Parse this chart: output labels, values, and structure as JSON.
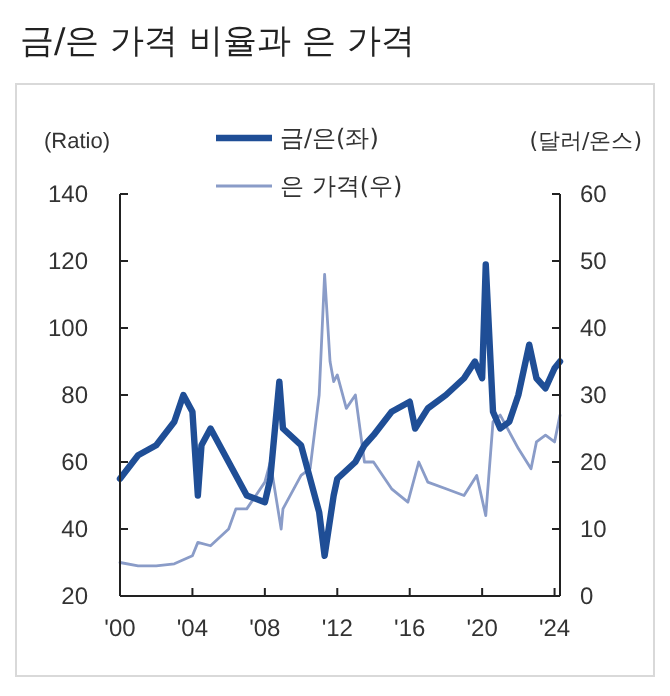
{
  "chart_data": {
    "type": "line",
    "title": "금/은 가격 비율과 은 가격",
    "ylabel": "(Ratio)",
    "y2label": "(달러/온스)",
    "xlim": [
      2000,
      2024.3
    ],
    "xticks": [
      {
        "value": 2000,
        "label": "'00"
      },
      {
        "value": 2004,
        "label": "'04"
      },
      {
        "value": 2008,
        "label": "'08"
      },
      {
        "value": 2012,
        "label": "'12"
      },
      {
        "value": 2016,
        "label": "'16"
      },
      {
        "value": 2020,
        "label": "'20"
      },
      {
        "value": 2024,
        "label": "'24"
      }
    ],
    "ylim": [
      20,
      140
    ],
    "yticks": [
      20,
      40,
      60,
      80,
      100,
      120,
      140
    ],
    "y2lim": [
      0,
      60
    ],
    "y2ticks": [
      0,
      10,
      20,
      30,
      40,
      50,
      60
    ],
    "legend": "top",
    "grid": false,
    "series": [
      {
        "name": "금/은(좌)",
        "color": "#1f4e96",
        "x": [
          2000,
          2001,
          2002,
          2003,
          2003.5,
          2004,
          2004.3,
          2004.5,
          2005,
          2006,
          2006.5,
          2007,
          2008,
          2008.3,
          2008.8,
          2009,
          2010,
          2011,
          2011.3,
          2011.8,
          2012,
          2013,
          2013.5,
          2014,
          2015,
          2016,
          2016.3,
          2017,
          2018,
          2019,
          2019.6,
          2020,
          2020.2,
          2020.6,
          2021,
          2021.5,
          2022,
          2022.6,
          2023,
          2023.5,
          2024,
          2024.3
        ],
        "values": [
          55,
          62,
          65,
          72,
          80,
          75,
          50,
          65,
          70,
          60,
          55,
          50,
          48,
          55,
          84,
          70,
          65,
          45,
          32,
          50,
          55,
          60,
          65,
          68,
          75,
          78,
          70,
          76,
          80,
          85,
          90,
          85,
          119,
          75,
          70,
          72,
          80,
          95,
          85,
          82,
          88,
          90
        ]
      },
      {
        "name": "은 가격(우)",
        "color": "#8a9cc8",
        "axis": "y2",
        "x": [
          2000,
          2001,
          2002,
          2003,
          2004,
          2004.3,
          2005,
          2006,
          2006.4,
          2007,
          2008,
          2008.3,
          2008.9,
          2009,
          2010,
          2010.5,
          2011,
          2011.3,
          2011.6,
          2011.8,
          2012,
          2012.5,
          2013,
          2013.5,
          2014,
          2015,
          2015.9,
          2016.5,
          2017,
          2018,
          2019,
          2019.7,
          2020.2,
          2020.6,
          2021,
          2022,
          2022.7,
          2023,
          2023.5,
          2024,
          2024.3
        ],
        "values": [
          5,
          4.5,
          4.5,
          4.8,
          6,
          8,
          7.5,
          10,
          13,
          13,
          17,
          20,
          10,
          13,
          18,
          19,
          30,
          48,
          35,
          32,
          33,
          28,
          30,
          20,
          20,
          16,
          14,
          20,
          17,
          16,
          15,
          18,
          12,
          26,
          27,
          22,
          19,
          23,
          24,
          23,
          27
        ]
      }
    ]
  }
}
